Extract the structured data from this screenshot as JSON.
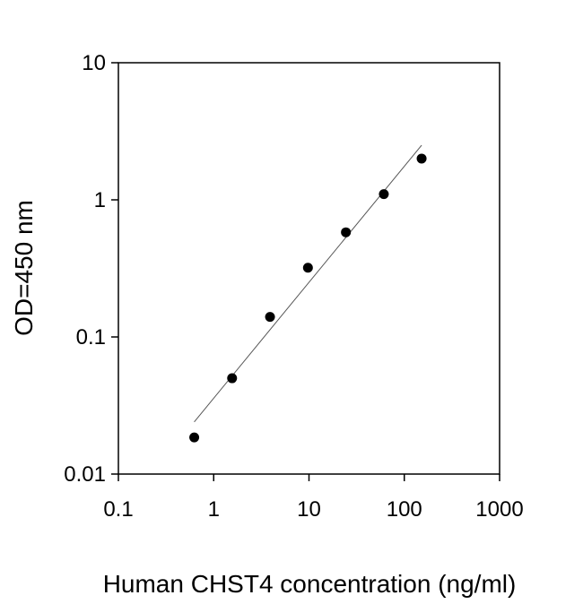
{
  "chart_data": {
    "type": "scatter",
    "xlabel": "Human CHST4 concentration (ng/ml)",
    "ylabel": "OD=450 nm",
    "xscale": "log",
    "yscale": "log",
    "xlim": [
      0.1,
      1000
    ],
    "ylim": [
      0.01,
      10
    ],
    "grid": false,
    "legend": "none",
    "x_ticks": [
      0.1,
      1,
      10,
      100,
      1000
    ],
    "x_tick_labels": [
      "0.1",
      "1",
      "10",
      "100",
      "1000"
    ],
    "y_ticks": [
      0.01,
      0.1,
      1,
      10
    ],
    "y_tick_labels": [
      "0.01",
      "0.1",
      "1",
      "10"
    ],
    "points": [
      {
        "x": 0.625,
        "y": 0.0185
      },
      {
        "x": 1.56,
        "y": 0.05
      },
      {
        "x": 3.9,
        "y": 0.14
      },
      {
        "x": 9.75,
        "y": 0.32
      },
      {
        "x": 24.4,
        "y": 0.58
      },
      {
        "x": 61,
        "y": 1.1
      },
      {
        "x": 152,
        "y": 2.0
      }
    ],
    "fit_line": {
      "x": [
        0.625,
        152
      ],
      "y": [
        0.024,
        2.5
      ]
    },
    "colors": {
      "points": "#000000",
      "fit_line": "#555555",
      "axes": "#000000"
    }
  }
}
